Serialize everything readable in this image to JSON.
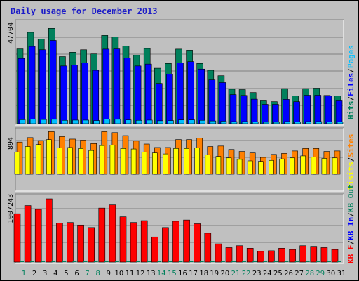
{
  "title": "Daily usage for December 2013",
  "colors": {
    "background": "#c0c0c0",
    "hits": "#00805c",
    "files": "#0000ff",
    "pages": "#00c0ff",
    "visits": "#ffff00",
    "sites": "#ff8000",
    "kb_f": "#ff0000",
    "kb_in": "#0000ff",
    "kb_out": "#00805c",
    "day_weekday": "#000000",
    "day_weekend": "#00805c"
  },
  "chart_data": [
    {
      "type": "bar",
      "panel": "hits-files-pages",
      "y_max_label": "47704",
      "ylim": [
        0,
        47704
      ],
      "legend": [
        {
          "label": "Hits",
          "color": "#00805c"
        },
        {
          "label": "/",
          "color": "#000000"
        },
        {
          "label": "Files",
          "color": "#0000ff"
        },
        {
          "label": "/",
          "color": "#000000"
        },
        {
          "label": "Pages",
          "color": "#00c0ff"
        }
      ],
      "categories": [
        "1",
        "2",
        "3",
        "4",
        "5",
        "6",
        "7",
        "8",
        "9",
        "10",
        "11",
        "12",
        "13",
        "14",
        "15",
        "16",
        "17",
        "18",
        "19",
        "20",
        "21",
        "22",
        "23",
        "24",
        "25",
        "26",
        "27",
        "28",
        "29",
        "30",
        "31"
      ],
      "series": [
        {
          "name": "Hits",
          "values": [
            36000,
            44000,
            40700,
            45900,
            32300,
            34400,
            35600,
            33600,
            42500,
            41800,
            37400,
            32900,
            36200,
            26700,
            29000,
            35900,
            35400,
            29000,
            25700,
            23100,
            16600,
            16400,
            15000,
            11000,
            10600,
            16900,
            13300,
            16900,
            17100,
            13600,
            13400
          ]
        },
        {
          "name": "Files",
          "values": [
            31400,
            37200,
            35600,
            40100,
            27800,
            28200,
            29300,
            25700,
            35900,
            36000,
            31600,
            27800,
            28700,
            19400,
            23800,
            29200,
            29900,
            26300,
            21100,
            19800,
            14000,
            13600,
            11800,
            9300,
            9300,
            11700,
            10600,
            13700,
            13700,
            13400,
            11000
          ]
        },
        {
          "name": "Pages",
          "values": [
            1900,
            2200,
            2000,
            2100,
            1600,
            1700,
            1700,
            1500,
            2200,
            2100,
            1800,
            1600,
            1700,
            1400,
            1500,
            1800,
            1800,
            1600,
            1300,
            1200,
            1000,
            1000,
            900,
            700,
            700,
            1000,
            800,
            1000,
            1000,
            800,
            900
          ]
        }
      ]
    },
    {
      "type": "bar",
      "panel": "visits-sites",
      "y_max_label": "894",
      "ylim": [
        0,
        894
      ],
      "legend": [
        {
          "label": "Visits",
          "color": "#ffff00"
        },
        {
          "label": "/",
          "color": "#000000"
        },
        {
          "label": "Sites",
          "color": "#ff8000"
        }
      ],
      "categories": [
        "1",
        "2",
        "3",
        "4",
        "5",
        "6",
        "7",
        "8",
        "9",
        "10",
        "11",
        "12",
        "13",
        "14",
        "15",
        "16",
        "17",
        "18",
        "19",
        "20",
        "21",
        "22",
        "23",
        "24",
        "25",
        "26",
        "27",
        "28",
        "29",
        "30",
        "31"
      ],
      "series": [
        {
          "name": "Visits",
          "values": [
            450,
            560,
            600,
            700,
            530,
            540,
            520,
            480,
            580,
            590,
            520,
            510,
            450,
            430,
            410,
            520,
            520,
            530,
            390,
            360,
            330,
            300,
            270,
            260,
            280,
            310,
            330,
            370,
            350,
            320,
            330
          ]
        },
        {
          "name": "Sites",
          "values": [
            650,
            740,
            680,
            860,
            760,
            710,
            690,
            620,
            860,
            840,
            780,
            670,
            610,
            540,
            540,
            700,
            700,
            730,
            560,
            570,
            500,
            460,
            430,
            340,
            400,
            420,
            470,
            520,
            520,
            460,
            470
          ]
        }
      ]
    },
    {
      "type": "bar",
      "panel": "kbf-kbin-kbout",
      "y_max_label": "1007243",
      "ylim": [
        0,
        1007243
      ],
      "legend": [
        {
          "label": "KB F",
          "color": "#ff0000"
        },
        {
          "label": "/",
          "color": "#000000"
        },
        {
          "label": "KB In",
          "color": "#0000ff"
        },
        {
          "label": "/",
          "color": "#000000"
        },
        {
          "label": "KB Out",
          "color": "#00805c"
        }
      ],
      "categories": [
        "1",
        "2",
        "3",
        "4",
        "5",
        "6",
        "7",
        "8",
        "9",
        "10",
        "11",
        "12",
        "13",
        "14",
        "15",
        "16",
        "17",
        "18",
        "19",
        "20",
        "21",
        "22",
        "23",
        "24",
        "25",
        "26",
        "27",
        "28",
        "29",
        "30",
        "31"
      ],
      "series": [
        {
          "name": "KB F",
          "values": [
            770000,
            900000,
            840000,
            1007000,
            620000,
            630000,
            590000,
            550000,
            860000,
            910000,
            720000,
            630000,
            660000,
            400000,
            550000,
            650000,
            670000,
            610000,
            460000,
            290000,
            230000,
            260000,
            220000,
            170000,
            180000,
            220000,
            200000,
            260000,
            250000,
            230000,
            200000
          ]
        },
        {
          "name": "KB In",
          "values": [
            0,
            0,
            0,
            0,
            0,
            0,
            0,
            0,
            0,
            0,
            0,
            0,
            0,
            0,
            0,
            0,
            0,
            0,
            0,
            0,
            0,
            0,
            0,
            0,
            0,
            0,
            0,
            0,
            0,
            0,
            0
          ]
        },
        {
          "name": "KB Out",
          "values": [
            10000,
            10000,
            10000,
            10000,
            10000,
            10000,
            10000,
            10000,
            10000,
            10000,
            10000,
            10000,
            10000,
            10000,
            10000,
            10000,
            10000,
            10000,
            10000,
            10000,
            10000,
            10000,
            10000,
            10000,
            10000,
            10000,
            10000,
            10000,
            10000,
            10000,
            10000
          ]
        }
      ]
    }
  ],
  "day_labels": [
    {
      "label": "1",
      "weekend": true
    },
    {
      "label": "2",
      "weekend": false
    },
    {
      "label": "3",
      "weekend": false
    },
    {
      "label": "4",
      "weekend": false
    },
    {
      "label": "5",
      "weekend": false
    },
    {
      "label": "6",
      "weekend": false
    },
    {
      "label": "7",
      "weekend": true
    },
    {
      "label": "8",
      "weekend": true
    },
    {
      "label": "9",
      "weekend": false
    },
    {
      "label": "10",
      "weekend": false
    },
    {
      "label": "11",
      "weekend": false
    },
    {
      "label": "12",
      "weekend": false
    },
    {
      "label": "13",
      "weekend": false
    },
    {
      "label": "14",
      "weekend": true
    },
    {
      "label": "15",
      "weekend": true
    },
    {
      "label": "16",
      "weekend": false
    },
    {
      "label": "17",
      "weekend": false
    },
    {
      "label": "18",
      "weekend": false
    },
    {
      "label": "19",
      "weekend": false
    },
    {
      "label": "20",
      "weekend": false
    },
    {
      "label": "21",
      "weekend": true
    },
    {
      "label": "22",
      "weekend": true
    },
    {
      "label": "23",
      "weekend": false
    },
    {
      "label": "24",
      "weekend": false
    },
    {
      "label": "25",
      "weekend": false
    },
    {
      "label": "26",
      "weekend": false
    },
    {
      "label": "27",
      "weekend": false
    },
    {
      "label": "28",
      "weekend": true
    },
    {
      "label": "29",
      "weekend": true
    },
    {
      "label": "30",
      "weekend": false
    },
    {
      "label": "31",
      "weekend": false
    }
  ]
}
